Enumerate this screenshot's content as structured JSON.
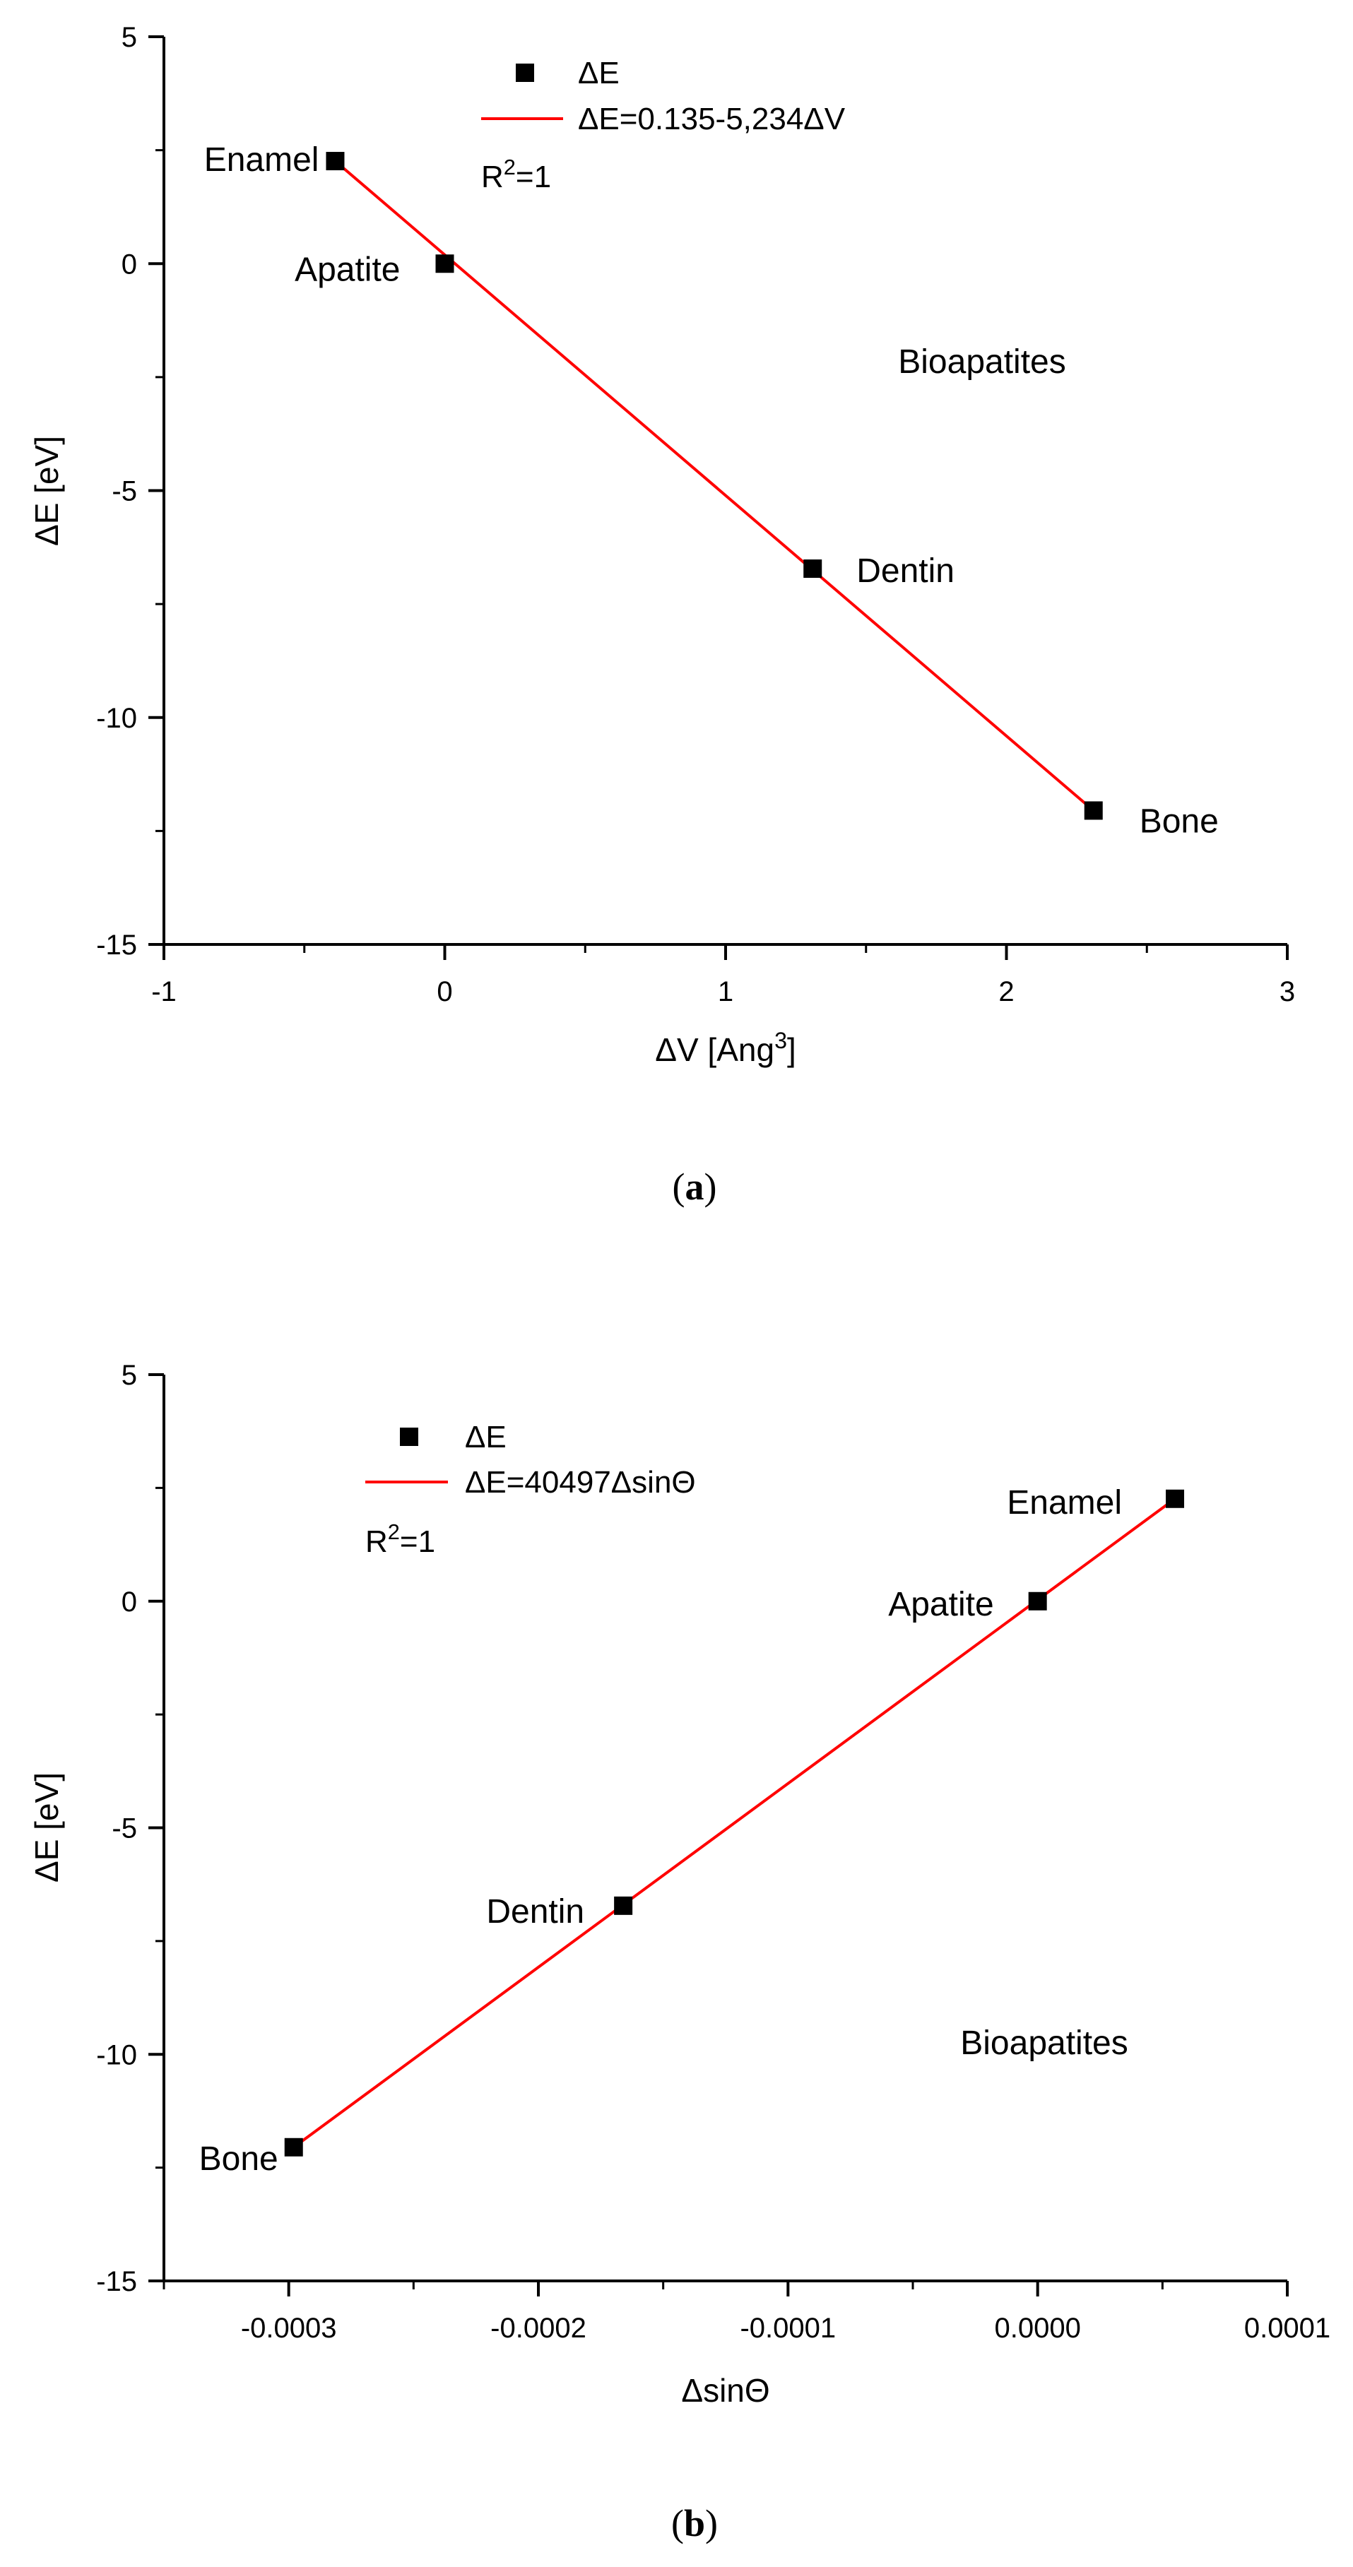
{
  "chart_data": [
    {
      "panel_caption": "(a)",
      "type": "scatter",
      "xlabel": "ΔV [Ang³]",
      "ylabel": "ΔE [eV]",
      "xlim": [
        -1,
        3
      ],
      "ylim": [
        -15,
        5
      ],
      "x_ticks": [
        -1,
        0,
        1,
        2,
        3
      ],
      "x_tick_labels": [
        "-1",
        "0",
        "1",
        "2",
        "3"
      ],
      "y_ticks": [
        -15,
        -10,
        -5,
        0,
        5
      ],
      "y_tick_labels": [
        "-15",
        "-10",
        "-5",
        "0",
        "5"
      ],
      "series": [
        {
          "name": "ΔE",
          "marker": "square",
          "color": "#000000",
          "points": [
            {
              "label": "Enamel",
              "x": -0.39,
              "y": 2.26
            },
            {
              "label": "Apatite",
              "x": 0.0,
              "y": 0.0
            },
            {
              "label": "Dentin",
              "x": 1.31,
              "y": -6.72
            },
            {
              "label": "Bone",
              "x": 2.31,
              "y": -12.05
            }
          ]
        }
      ],
      "fit": {
        "name": "ΔE=0.135-5,234ΔV",
        "color": "#ff0000",
        "x": [
          -0.39,
          2.31
        ],
        "y": [
          2.26,
          -12.05
        ]
      },
      "annotations": [
        "R²=1",
        "Bioapatites"
      ],
      "legend_position": "top-center",
      "grid": false
    },
    {
      "panel_caption": "(b)",
      "type": "scatter",
      "xlabel": "ΔsinΘ",
      "ylabel": "ΔE [eV]",
      "xlim": [
        -0.00035,
        0.0001
      ],
      "ylim": [
        -15,
        5
      ],
      "x_ticks": [
        -0.0003,
        -0.0002,
        -0.0001,
        0.0,
        0.0001
      ],
      "x_tick_labels": [
        "-0.0003",
        "-0.0002",
        "-0.0001",
        "0.0000",
        "0.0001"
      ],
      "y_ticks": [
        -15,
        -10,
        -5,
        0,
        5
      ],
      "y_tick_labels": [
        "-15",
        "-10",
        "-5",
        "0",
        "5"
      ],
      "series": [
        {
          "name": "ΔE",
          "marker": "square",
          "color": "#000000",
          "points": [
            {
              "label": "Bone",
              "x": -0.000298,
              "y": -12.05
            },
            {
              "label": "Dentin",
              "x": -0.000166,
              "y": -6.72
            },
            {
              "label": "Apatite",
              "x": 0.0,
              "y": 0.0
            },
            {
              "label": "Enamel",
              "x": 5.5e-05,
              "y": 2.26
            }
          ]
        }
      ],
      "fit": {
        "name": "ΔE=40497ΔsinΘ",
        "color": "#ff0000",
        "x": [
          -0.000298,
          5.5e-05
        ],
        "y": [
          -12.05,
          2.26
        ]
      },
      "annotations": [
        "R²=1",
        "Bioapatites"
      ],
      "legend_position": "top-left",
      "grid": false
    }
  ]
}
